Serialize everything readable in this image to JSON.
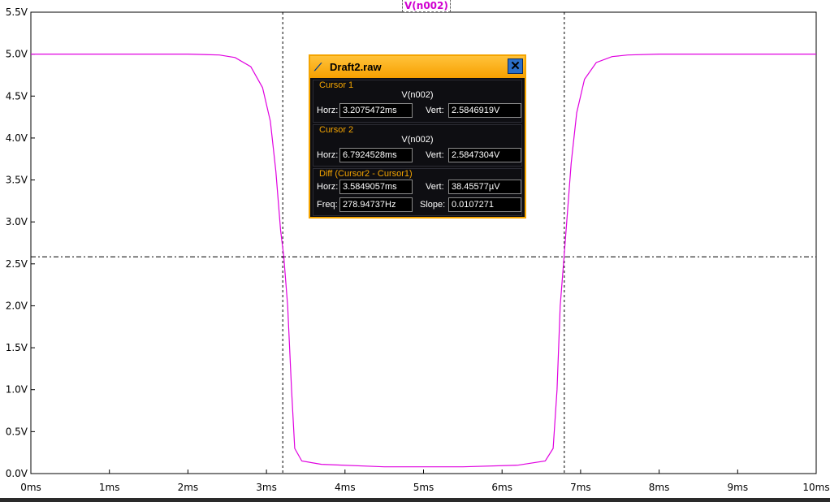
{
  "trace_label": "V(n002)",
  "colors": {
    "trace": "#e000e0",
    "accent": "#f4a400",
    "window_bg": "#0e0e12"
  },
  "chart_data": {
    "type": "line",
    "xlabel": "",
    "ylabel": "",
    "xlim": [
      0,
      10
    ],
    "ylim": [
      0,
      5.5
    ],
    "x_ticks": [
      "0ms",
      "1ms",
      "2ms",
      "3ms",
      "4ms",
      "5ms",
      "6ms",
      "7ms",
      "8ms",
      "9ms",
      "10ms"
    ],
    "y_ticks": [
      "0.0V",
      "0.5V",
      "1.0V",
      "1.5V",
      "2.0V",
      "2.5V",
      "3.0V",
      "3.5V",
      "4.0V",
      "4.5V",
      "5.0V",
      "5.5V"
    ],
    "series": [
      {
        "name": "V(n002)",
        "x": [
          0,
          2.0,
          2.4,
          2.6,
          2.8,
          2.95,
          3.05,
          3.12,
          3.18,
          3.22,
          3.27,
          3.32,
          3.36,
          3.45,
          3.7,
          4.5,
          5.5,
          6.2,
          6.55,
          6.65,
          6.7,
          6.74,
          6.79,
          6.84,
          6.88,
          6.95,
          7.05,
          7.2,
          7.4,
          7.6,
          8.0,
          10.0
        ],
        "values": [
          5.0,
          5.0,
          4.99,
          4.96,
          4.85,
          4.6,
          4.2,
          3.6,
          2.9,
          2.59,
          2.0,
          1.0,
          0.3,
          0.15,
          0.11,
          0.08,
          0.08,
          0.1,
          0.15,
          0.3,
          1.0,
          2.0,
          2.59,
          3.2,
          3.7,
          4.3,
          4.7,
          4.9,
          4.97,
          4.99,
          5.0,
          5.0
        ]
      }
    ],
    "cursors": {
      "x1": 3.2075472,
      "x2": 6.7924528,
      "y": 2.5846919
    },
    "grid": false
  },
  "cursor_window": {
    "title": "Draft2.raw",
    "close_label": "✕",
    "cursor1": {
      "title": "Cursor 1",
      "signal": "V(n002)",
      "horz_label": "Horz:",
      "horz": "3.2075472ms",
      "vert_label": "Vert:",
      "vert": "2.5846919V"
    },
    "cursor2": {
      "title": "Cursor 2",
      "signal": "V(n002)",
      "horz_label": "Horz:",
      "horz": "6.7924528ms",
      "vert_label": "Vert:",
      "vert": "2.5847304V"
    },
    "diff": {
      "title": "Diff (Cursor2 - Cursor1)",
      "horz_label": "Horz:",
      "horz": "3.5849057ms",
      "vert_label": "Vert:",
      "vert": "38.45577µV",
      "freq_label": "Freq:",
      "freq": "278.94737Hz",
      "slope_label": "Slope:",
      "slope": "0.0107271"
    }
  }
}
